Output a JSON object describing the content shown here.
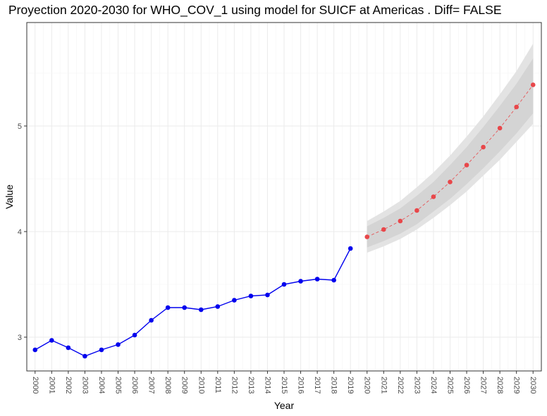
{
  "chart_data": {
    "type": "line",
    "title": "Proyection 2020-2030 for WHO_COV_1 using model for SUICF at Americas . Diff= FALSE",
    "xlabel": "Year",
    "ylabel": "Value",
    "xlim": [
      1999.5,
      2030.5
    ],
    "ylim": [
      2.68,
      5.98
    ],
    "yticks": [
      3,
      4,
      5
    ],
    "grid": true,
    "legend": "none",
    "categories": [
      "2000",
      "2001",
      "2002",
      "2003",
      "2004",
      "2005",
      "2006",
      "2007",
      "2008",
      "2009",
      "2010",
      "2011",
      "2012",
      "2013",
      "2014",
      "2015",
      "2016",
      "2017",
      "2018",
      "2019",
      "2020",
      "2021",
      "2022",
      "2023",
      "2024",
      "2025",
      "2026",
      "2027",
      "2028",
      "2029",
      "2030"
    ],
    "series": [
      {
        "color": "#0000ee",
        "style": "solid",
        "x": [
          2000,
          2001,
          2002,
          2003,
          2004,
          2005,
          2006,
          2007,
          2008,
          2009,
          2010,
          2011,
          2012,
          2013,
          2014,
          2015,
          2016,
          2017,
          2018,
          2019
        ],
        "values": [
          2.88,
          2.97,
          2.9,
          2.82,
          2.88,
          2.93,
          3.02,
          3.16,
          3.28,
          3.28,
          3.26,
          3.29,
          3.35,
          3.39,
          3.4,
          3.5,
          3.53,
          3.55,
          3.54,
          3.84
        ]
      },
      {
        "color": "#e8474a",
        "style": "dashed",
        "x": [
          2020,
          2021,
          2022,
          2023,
          2024,
          2025,
          2026,
          2027,
          2028,
          2029,
          2030
        ],
        "values": [
          3.95,
          4.02,
          4.1,
          4.2,
          4.33,
          4.47,
          4.63,
          4.8,
          4.98,
          5.18,
          5.39
        ]
      }
    ],
    "bands": [
      {
        "color": "#e3e3e3",
        "x": [
          2020,
          2021,
          2022,
          2023,
          2024,
          2025,
          2026,
          2027,
          2028,
          2029,
          2030
        ],
        "lower": [
          3.8,
          3.86,
          3.93,
          4.02,
          4.13,
          4.25,
          4.38,
          4.53,
          4.68,
          4.85,
          5.02
        ],
        "upper": [
          4.1,
          4.19,
          4.29,
          4.42,
          4.56,
          4.72,
          4.9,
          5.09,
          5.3,
          5.52,
          5.78
        ]
      },
      {
        "color": "#d4d4d4",
        "x": [
          2020,
          2021,
          2022,
          2023,
          2024,
          2025,
          2026,
          2027,
          2028,
          2029,
          2030
        ],
        "lower": [
          3.85,
          3.91,
          3.98,
          4.07,
          4.19,
          4.31,
          4.45,
          4.6,
          4.76,
          4.93,
          5.12
        ],
        "upper": [
          4.05,
          4.13,
          4.22,
          4.34,
          4.47,
          4.63,
          4.8,
          4.99,
          5.19,
          5.4,
          5.64
        ]
      }
    ]
  }
}
